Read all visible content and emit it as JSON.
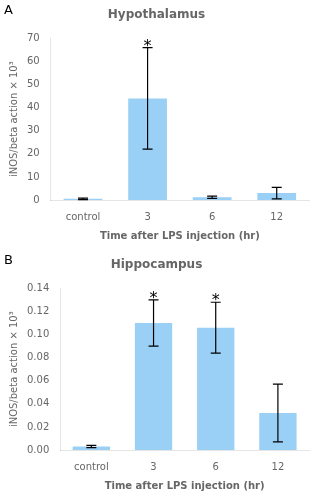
{
  "chart_data": [
    {
      "type": "bar",
      "title": "Hypothalamus",
      "label": "A",
      "categories": [
        "control",
        "3",
        "6",
        "12"
      ],
      "values": [
        0.5,
        44.0,
        1.2,
        3.0
      ],
      "errors": [
        0.3,
        22.0,
        0.5,
        2.5
      ],
      "annotations": [
        {
          "text": "*",
          "x": "3"
        }
      ],
      "xlabel": "Time after LPS injection (hr)",
      "ylabel": "iNOS/beta action × 10³",
      "ylim": [
        0,
        70
      ],
      "yticks": [
        0,
        10,
        20,
        30,
        40,
        50,
        60,
        70
      ],
      "grid": false
    },
    {
      "type": "bar",
      "title": "Hippocampus",
      "label": "B",
      "categories": [
        "control",
        "3",
        "6",
        "12"
      ],
      "values": [
        0.003,
        0.11,
        0.106,
        0.032
      ],
      "errors": [
        0.001,
        0.02,
        0.022,
        0.025
      ],
      "annotations": [
        {
          "text": "*",
          "x": "3"
        },
        {
          "text": "*",
          "x": "6"
        }
      ],
      "xlabel": "Time after LPS injection (hr)",
      "ylabel": "iNOS/beta action × 10³",
      "ylim": [
        0,
        0.14
      ],
      "yticks": [
        {
          "value": 0.0,
          "label": "0.00"
        },
        0.02,
        0.04,
        0.06,
        0.08,
        {
          "value": 0.1,
          "label": "0.10"
        },
        0.12,
        0.14
      ],
      "grid": false
    }
  ]
}
